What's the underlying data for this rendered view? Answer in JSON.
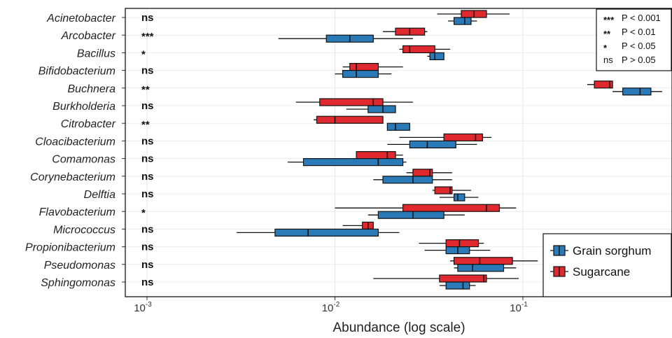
{
  "chart_data": {
    "type": "boxplot",
    "xlabel": "Abundance (log scale)",
    "xscale": "log",
    "xlim": [
      0.0008,
      0.8
    ],
    "xticks": [
      {
        "value": 0.001,
        "base": "10",
        "exp": "-3"
      },
      {
        "value": 0.01,
        "base": "10",
        "exp": "-2"
      },
      {
        "value": 0.1,
        "base": "10",
        "exp": "-1"
      }
    ],
    "grid": true,
    "legend_position": "bottom-right",
    "series": [
      {
        "name": "Grain sorghum",
        "color": "#2a7ab8"
      },
      {
        "name": "Sugarcane",
        "color": "#e0292f"
      }
    ],
    "significance_legend": [
      {
        "symbol": "***",
        "text": "P < 0.001"
      },
      {
        "symbol": "**",
        "text": "P < 0.01"
      },
      {
        "symbol": "*",
        "text": "P < 0.05"
      },
      {
        "symbol": "ns",
        "text": "P > 0.05"
      }
    ],
    "groups": [
      {
        "genus": "Acinetobacter",
        "significance": "ns",
        "sugarcane": {
          "whislo": 0.035,
          "q1": 0.047,
          "med": 0.055,
          "q3": 0.064,
          "whishi": 0.085
        },
        "grain_sorghum": {
          "whislo": 0.04,
          "q1": 0.043,
          "med": 0.049,
          "q3": 0.053,
          "whishi": 0.057
        }
      },
      {
        "genus": "Arcobacter",
        "significance": "***",
        "sugarcane": {
          "whislo": 0.018,
          "q1": 0.021,
          "med": 0.025,
          "q3": 0.03,
          "whishi": 0.031
        },
        "grain_sorghum": {
          "whislo": 0.005,
          "q1": 0.009,
          "med": 0.012,
          "q3": 0.016,
          "whishi": 0.026
        }
      },
      {
        "genus": "Bacillus",
        "significance": "*",
        "sugarcane": {
          "whislo": 0.022,
          "q1": 0.023,
          "med": 0.025,
          "q3": 0.034,
          "whishi": 0.041
        },
        "grain_sorghum": {
          "whislo": 0.031,
          "q1": 0.032,
          "med": 0.034,
          "q3": 0.038,
          "whishi": 0.038
        }
      },
      {
        "genus": "Bifidobacterium",
        "significance": "ns",
        "sugarcane": {
          "whislo": 0.011,
          "q1": 0.012,
          "med": 0.013,
          "q3": 0.017,
          "whishi": 0.023
        },
        "grain_sorghum": {
          "whislo": 0.01,
          "q1": 0.011,
          "med": 0.013,
          "q3": 0.017,
          "whishi": 0.02
        }
      },
      {
        "genus": "Buchnera",
        "significance": "**",
        "sugarcane": {
          "whislo": 0.22,
          "q1": 0.24,
          "med": 0.29,
          "q3": 0.3,
          "whishi": 0.3
        },
        "grain_sorghum": {
          "whislo": 0.3,
          "q1": 0.34,
          "med": 0.42,
          "q3": 0.48,
          "whishi": 0.55
        }
      },
      {
        "genus": "Burkholderia",
        "significance": "ns",
        "sugarcane": {
          "whislo": 0.0062,
          "q1": 0.0083,
          "med": 0.016,
          "q3": 0.018,
          "whishi": 0.026
        },
        "grain_sorghum": {
          "whislo": 0.0115,
          "q1": 0.015,
          "med": 0.018,
          "q3": 0.021,
          "whishi": 0.021
        }
      },
      {
        "genus": "Citrobacter",
        "significance": "**",
        "sugarcane": {
          "whislo": 0.0077,
          "q1": 0.008,
          "med": 0.01,
          "q3": 0.018,
          "whishi": 0.018
        },
        "grain_sorghum": {
          "whislo": 0.019,
          "q1": 0.019,
          "med": 0.021,
          "q3": 0.025,
          "whishi": 0.025
        }
      },
      {
        "genus": "Cloacibacterium",
        "significance": "ns",
        "sugarcane": {
          "whislo": 0.022,
          "q1": 0.038,
          "med": 0.056,
          "q3": 0.061,
          "whishi": 0.068
        },
        "grain_sorghum": {
          "whislo": 0.019,
          "q1": 0.025,
          "med": 0.031,
          "q3": 0.044,
          "whishi": 0.057
        }
      },
      {
        "genus": "Comamonas",
        "significance": "ns",
        "sugarcane": {
          "whislo": 0.013,
          "q1": 0.013,
          "med": 0.019,
          "q3": 0.021,
          "whishi": 0.023
        },
        "grain_sorghum": {
          "whislo": 0.0056,
          "q1": 0.0068,
          "med": 0.017,
          "q3": 0.023,
          "whishi": 0.024
        }
      },
      {
        "genus": "Corynebacterium",
        "significance": "ns",
        "sugarcane": {
          "whislo": 0.024,
          "q1": 0.026,
          "med": 0.032,
          "q3": 0.033,
          "whishi": 0.042
        },
        "grain_sorghum": {
          "whislo": 0.016,
          "q1": 0.018,
          "med": 0.026,
          "q3": 0.033,
          "whishi": 0.042
        }
      },
      {
        "genus": "Delftia",
        "significance": "ns",
        "sugarcane": {
          "whislo": 0.033,
          "q1": 0.034,
          "med": 0.041,
          "q3": 0.042,
          "whishi": 0.053
        },
        "grain_sorghum": {
          "whislo": 0.036,
          "q1": 0.043,
          "med": 0.045,
          "q3": 0.049,
          "whishi": 0.058
        }
      },
      {
        "genus": "Flavobacterium",
        "significance": "*",
        "sugarcane": {
          "whislo": 0.01,
          "q1": 0.023,
          "med": 0.064,
          "q3": 0.075,
          "whishi": 0.092
        },
        "grain_sorghum": {
          "whislo": 0.015,
          "q1": 0.017,
          "med": 0.026,
          "q3": 0.038,
          "whishi": 0.049
        }
      },
      {
        "genus": "Micrococcus",
        "significance": "ns",
        "sugarcane": {
          "whislo": 0.011,
          "q1": 0.014,
          "med": 0.015,
          "q3": 0.016,
          "whishi": 0.016
        },
        "grain_sorghum": {
          "whislo": 0.003,
          "q1": 0.0048,
          "med": 0.0072,
          "q3": 0.017,
          "whishi": 0.022
        }
      },
      {
        "genus": "Propionibacterium",
        "significance": "ns",
        "sugarcane": {
          "whislo": 0.028,
          "q1": 0.039,
          "med": 0.046,
          "q3": 0.058,
          "whishi": 0.062
        },
        "grain_sorghum": {
          "whislo": 0.03,
          "q1": 0.039,
          "med": 0.045,
          "q3": 0.052,
          "whishi": 0.067
        }
      },
      {
        "genus": "Pseudomonas",
        "significance": "ns",
        "sugarcane": {
          "whislo": 0.041,
          "q1": 0.043,
          "med": 0.059,
          "q3": 0.088,
          "whishi": 0.12
        },
        "grain_sorghum": {
          "whislo": 0.043,
          "q1": 0.045,
          "med": 0.054,
          "q3": 0.079,
          "whishi": 0.092
        }
      },
      {
        "genus": "Sphingomonas",
        "significance": "ns",
        "sugarcane": {
          "whislo": 0.016,
          "q1": 0.036,
          "med": 0.062,
          "q3": 0.064,
          "whishi": 0.095
        },
        "grain_sorghum": {
          "whislo": 0.036,
          "q1": 0.039,
          "med": 0.048,
          "q3": 0.052,
          "whishi": 0.056
        }
      }
    ]
  }
}
